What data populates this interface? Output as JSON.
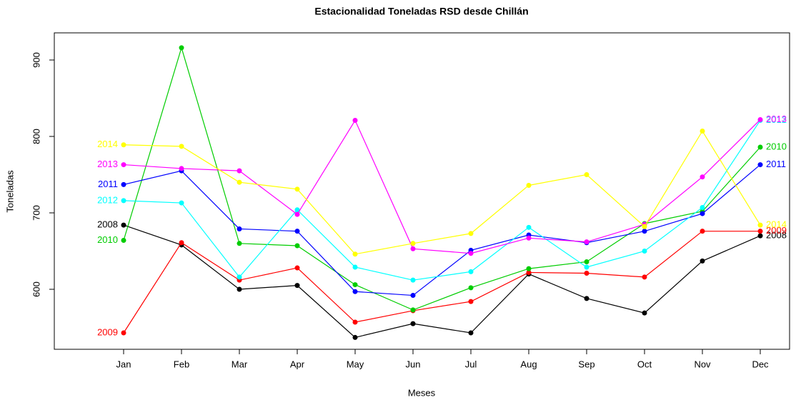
{
  "chart_data": {
    "type": "line",
    "title": "Estacionalidad Toneladas RSD desde Chillán",
    "x_label": "Meses",
    "y_label": "Toneladas",
    "categories": [
      "Jan",
      "Feb",
      "Mar",
      "Apr",
      "May",
      "Jun",
      "Jul",
      "Aug",
      "Sep",
      "Oct",
      "Nov",
      "Dec"
    ],
    "ylim": [
      521.5,
      935.5
    ],
    "yticks": [
      600,
      700,
      800,
      900
    ],
    "series": [
      {
        "name": "2008",
        "color": "#000000",
        "values": [
          684,
          658,
          600,
          605,
          537,
          555,
          543,
          620,
          588,
          569,
          637,
          670
        ]
      },
      {
        "name": "2009",
        "color": "#ff0000",
        "values": [
          543,
          661,
          612,
          628,
          557,
          572,
          584,
          622,
          621,
          616,
          676,
          676
        ]
      },
      {
        "name": "2010",
        "color": "#00cd00",
        "values": [
          664,
          916,
          660,
          657,
          606,
          573,
          602,
          627,
          636,
          686,
          702,
          786
        ]
      },
      {
        "name": "2011",
        "color": "#0000ff",
        "values": [
          737,
          755,
          679,
          676,
          597,
          592,
          651,
          671,
          661,
          676,
          699,
          763
        ]
      },
      {
        "name": "2012",
        "color": "#00ffff",
        "values": [
          716,
          713,
          616,
          704,
          629,
          612,
          623,
          681,
          629,
          650,
          707,
          821
        ]
      },
      {
        "name": "2013",
        "color": "#ff00ff",
        "values": [
          763,
          758,
          755,
          698,
          821,
          653,
          647,
          667,
          662,
          685,
          747,
          822
        ]
      },
      {
        "name": "2014",
        "color": "#ffff00",
        "values": [
          789,
          787,
          740,
          731,
          646,
          660,
          673,
          736,
          750,
          682,
          807,
          684
        ]
      }
    ]
  }
}
